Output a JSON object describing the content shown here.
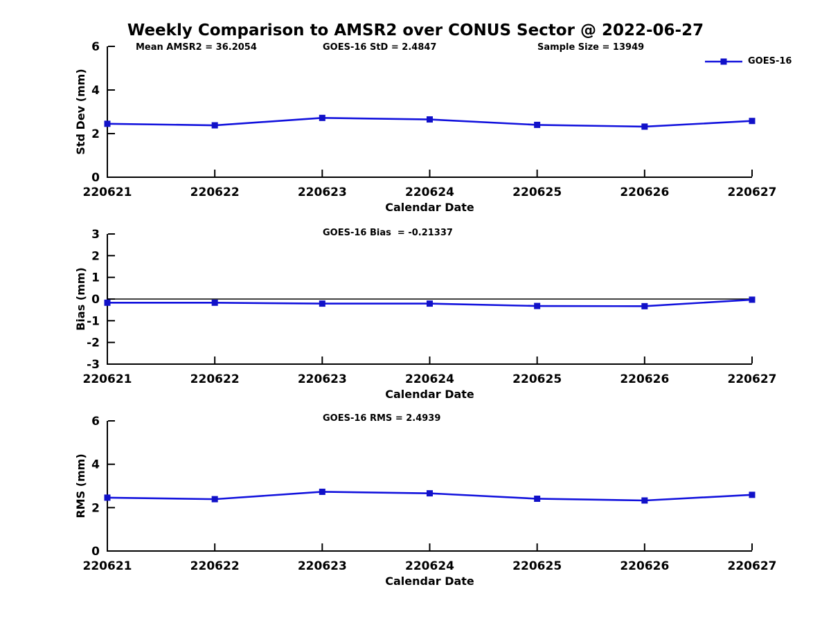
{
  "figure": {
    "title": "Weekly Comparison to AMSR2 over CONUS Sector @ 2022-06-27",
    "annotations": {
      "mean_amsr2": "Mean AMSR2 = 36.2054",
      "goes16_std": "GOES-16 StD = 2.4847",
      "sample_size": "Sample Size = 13949"
    },
    "legend": {
      "label": "GOES-16"
    },
    "colors": {
      "line": "#1111dd",
      "marker": "#1111c8",
      "axis": "#000000",
      "text": "#000000"
    }
  },
  "chart_data": [
    {
      "type": "line",
      "name": "std-dev-vs-date",
      "subtitle": "",
      "xlabel": "Calendar Date",
      "ylabel": "Std Dev (mm)",
      "categories": [
        "220621",
        "220622",
        "220623",
        "220624",
        "220625",
        "220626",
        "220627"
      ],
      "series": [
        {
          "name": "GOES-16",
          "values": [
            2.45,
            2.38,
            2.72,
            2.65,
            2.4,
            2.32,
            2.58
          ]
        }
      ],
      "ylim": [
        0,
        6
      ],
      "yticks": [
        0,
        2,
        4,
        6
      ],
      "zero_line": false,
      "grid": false,
      "legend_position": "top-right"
    },
    {
      "type": "line",
      "name": "bias-vs-date",
      "subtitle": "GOES-16 Bias  = -0.21337",
      "xlabel": "Calendar Date",
      "ylabel": "Bias (mm)",
      "categories": [
        "220621",
        "220622",
        "220623",
        "220624",
        "220625",
        "220626",
        "220627"
      ],
      "series": [
        {
          "name": "GOES-16",
          "values": [
            -0.17,
            -0.17,
            -0.21,
            -0.21,
            -0.32,
            -0.33,
            -0.03
          ]
        }
      ],
      "ylim": [
        -3,
        3
      ],
      "yticks": [
        -3,
        -2,
        -1,
        0,
        1,
        2,
        3
      ],
      "zero_line": true,
      "grid": false,
      "legend_position": "none"
    },
    {
      "type": "line",
      "name": "rms-vs-date",
      "subtitle": "GOES-16 RMS = 2.4939",
      "xlabel": "Calendar Date",
      "ylabel": "RMS (mm)",
      "categories": [
        "220621",
        "220622",
        "220623",
        "220624",
        "220625",
        "220626",
        "220627"
      ],
      "series": [
        {
          "name": "GOES-16",
          "values": [
            2.46,
            2.39,
            2.73,
            2.66,
            2.41,
            2.33,
            2.59
          ]
        }
      ],
      "ylim": [
        0,
        6
      ],
      "yticks": [
        0,
        2,
        4,
        6
      ],
      "zero_line": false,
      "grid": false,
      "legend_position": "none"
    }
  ]
}
